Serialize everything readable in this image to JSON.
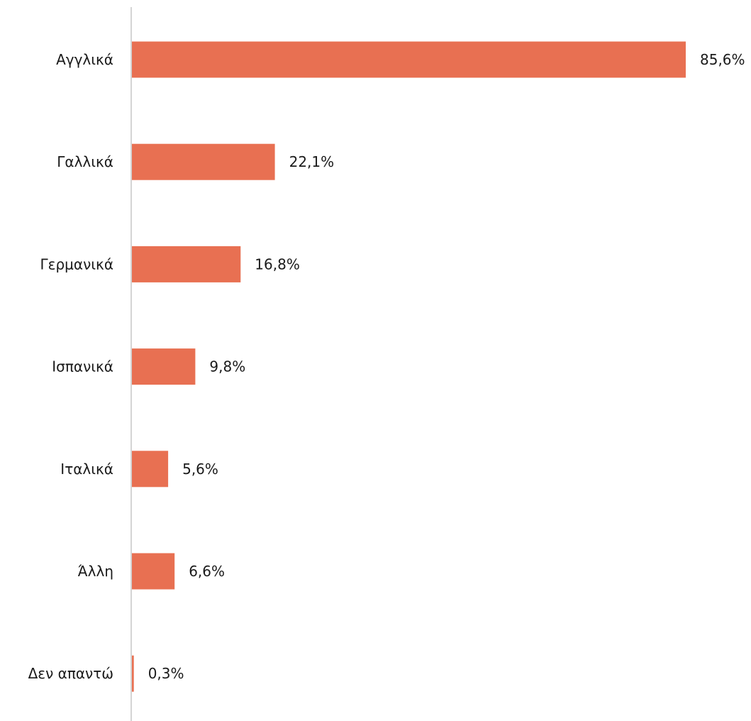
{
  "chart_data": {
    "type": "bar",
    "orientation": "horizontal",
    "title": "",
    "xlabel": "",
    "ylabel": "",
    "categories": [
      "Αγγλικά",
      "Γαλλικά",
      "Γερμανικά",
      "Ισπανικά",
      "Ιταλικά",
      "Άλλη",
      "Δεν απαντώ"
    ],
    "values": [
      85.6,
      22.1,
      16.8,
      9.8,
      5.6,
      6.6,
      0.3
    ],
    "value_labels": [
      "85,6%",
      "22,1%",
      "16,8%",
      "9,8%",
      "5,6%",
      "6,6%",
      "0,3%"
    ],
    "xlim": [
      0,
      100
    ],
    "grid": false,
    "legend": "none",
    "colors": {
      "bar": "#E87052",
      "axis": "#d4d4d4",
      "text": "#1a1a1a"
    }
  }
}
